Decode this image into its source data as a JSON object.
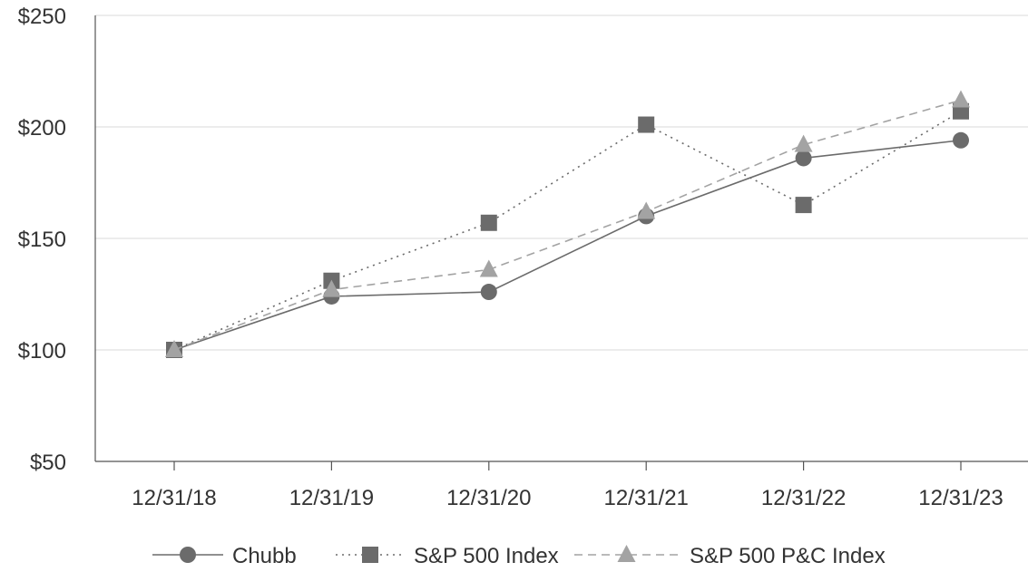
{
  "chart_data": {
    "type": "line",
    "categories": [
      "12/31/18",
      "12/31/19",
      "12/31/20",
      "12/31/21",
      "12/31/22",
      "12/31/23"
    ],
    "ylim": [
      50,
      250
    ],
    "yticks": [
      50,
      100,
      150,
      200,
      250
    ],
    "ytick_labels": [
      "$50",
      "$100",
      "$150",
      "$200",
      "$250"
    ],
    "grid": true,
    "legend_position": "bottom",
    "series": [
      {
        "name": "Chubb",
        "values": [
          100,
          124,
          126,
          160,
          186,
          194
        ],
        "color": "#6b6b6b",
        "marker": "circle",
        "dash": "solid"
      },
      {
        "name": "S&P 500 Index",
        "values": [
          100,
          131,
          157,
          201,
          165,
          207
        ],
        "color": "#6b6b6b",
        "marker": "square",
        "dash": "dotted"
      },
      {
        "name": "S&P 500 P&C Index",
        "values": [
          100,
          127,
          136,
          162,
          192,
          212
        ],
        "color": "#a3a3a3",
        "marker": "triangle",
        "dash": "dashed"
      }
    ]
  }
}
